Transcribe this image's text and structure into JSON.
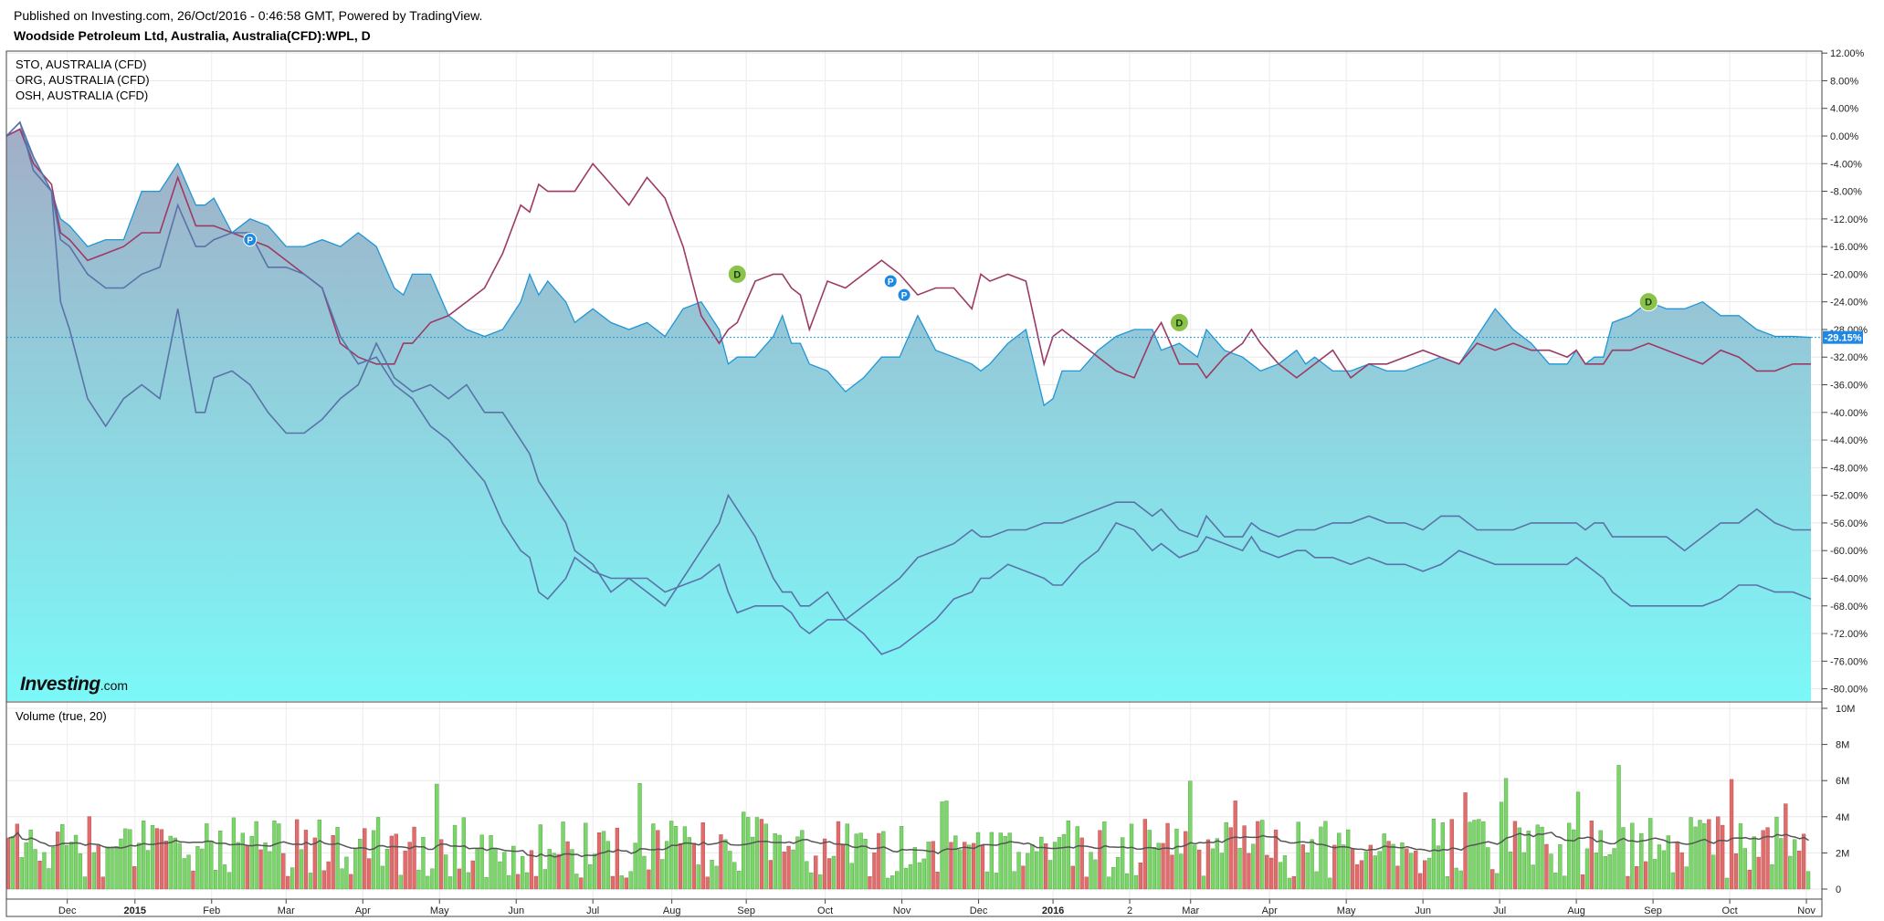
{
  "header": {
    "published": "Published on Investing.com, 26/Oct/2016 - 0:46:58 GMT, Powered by TradingView.",
    "symbol": "Woodside Petroleum Ltd, Australia, Australia(CFD):WPL, D"
  },
  "legend": [
    "STO, AUSTRALIA (CFD)",
    "ORG, AUSTRALIA (CFD)",
    "OSH, AUSTRALIA (CFD)"
  ],
  "volume_label": "Volume (true, 20)",
  "brand": {
    "bold": "Investing",
    "suffix": ".com"
  },
  "colors": {
    "wpl_line": "#2196d6",
    "sto_line": "#9c3a66",
    "compare_line": "#5a72a8",
    "area_top": "#a2aec6",
    "area_bottom": "#7cf8f8",
    "vol_up": "#7bd66a",
    "vol_down": "#e06c6c",
    "vol_ma": "#555555",
    "last_price_badge": "#1e88e5"
  },
  "chart_data": [
    {
      "type": "area",
      "title": "Woodside Petroleum Ltd, Australia, Australia(CFD):WPL, D",
      "xlabels": [
        "Dec",
        "2015",
        "Feb",
        "Mar",
        "Apr",
        "May",
        "Jun",
        "Jul",
        "Aug",
        "Sep",
        "Oct",
        "Nov",
        "Dec",
        "2016",
        "2",
        "Mar",
        "Apr",
        "May",
        "Jun",
        "Jul",
        "Aug",
        "Sep",
        "Oct",
        "Nov"
      ],
      "y_ticks": [
        "12.00%",
        "8.00%",
        "4.00%",
        "0.00%",
        "-4.00%",
        "-8.00%",
        "-12.00%",
        "-16.00%",
        "-20.00%",
        "-24.00%",
        "-28.00%",
        "-32.00%",
        "-36.00%",
        "-40.00%",
        "-44.00%",
        "-48.00%",
        "-52.00%",
        "-56.00%",
        "-60.00%",
        "-64.00%",
        "-68.00%",
        "-72.00%",
        "-76.00%",
        "-80.00%"
      ],
      "ylim": [
        -82,
        12
      ],
      "last_value_label": "-29.15%",
      "series": [
        {
          "name": "WPL",
          "style": "area",
          "x": [
            0,
            3,
            6,
            10,
            12,
            14,
            18,
            22,
            26,
            30,
            34,
            38,
            42,
            44,
            46,
            50,
            54,
            58,
            62,
            66,
            70,
            74,
            78,
            82,
            86,
            88,
            90,
            94,
            98,
            102,
            106,
            110,
            114,
            116,
            118,
            120,
            124,
            126,
            130,
            134,
            138,
            142,
            146,
            150,
            154,
            158,
            160,
            162,
            166,
            170,
            172,
            174,
            176,
            178,
            182,
            186,
            190,
            194,
            198,
            202,
            206,
            210,
            214,
            216,
            218,
            222,
            226,
            230,
            232,
            234,
            238,
            242,
            246,
            250,
            254,
            256,
            260,
            264,
            266,
            270,
            274,
            276,
            278,
            282,
            286,
            288,
            290,
            294,
            298,
            302,
            306,
            310,
            314,
            318,
            322,
            326,
            330,
            334,
            338,
            342,
            346,
            348,
            350,
            352,
            354,
            356,
            360,
            364,
            368,
            372,
            376,
            380,
            384,
            388,
            392,
            396,
            400
          ],
          "values": [
            0,
            1,
            -3,
            -8,
            -12,
            -13,
            -16,
            -15,
            -15,
            -8,
            -8,
            -4,
            -10,
            -10,
            -9,
            -14,
            -12,
            -13,
            -16,
            -16,
            -15,
            -16,
            -14,
            -16,
            -22,
            -23,
            -20,
            -20,
            -26,
            -28,
            -29,
            -28,
            -24,
            -20,
            -23,
            -21,
            -24,
            -27,
            -25,
            -27,
            -28,
            -27,
            -29,
            -25,
            -24,
            -28,
            -33,
            -32,
            -32,
            -29,
            -26,
            -30,
            -30,
            -33,
            -34,
            -37,
            -35,
            -32,
            -32,
            -26,
            -31,
            -32,
            -33,
            -34,
            -33,
            -30,
            -28,
            -39,
            -38,
            -34,
            -34,
            -31,
            -29,
            -28,
            -28,
            -31,
            -30,
            -32,
            -28,
            -31,
            -32,
            -33,
            -34,
            -33,
            -31,
            -33,
            -32,
            -34,
            -34,
            -33,
            -34,
            -34,
            -33,
            -32,
            -33,
            -29,
            -25,
            -28,
            -30,
            -33,
            -33,
            -31,
            -33,
            -32,
            -32,
            -27,
            -26,
            -24,
            -25,
            -25,
            -24,
            -26,
            -26,
            -28,
            -29,
            -29,
            -29.15
          ]
        },
        {
          "name": "STO",
          "style": "line",
          "x": [
            0,
            3,
            6,
            10,
            12,
            14,
            18,
            22,
            26,
            30,
            34,
            38,
            42,
            44,
            46,
            50,
            54,
            58,
            62,
            66,
            70,
            74,
            78,
            82,
            86,
            88,
            90,
            94,
            98,
            102,
            106,
            110,
            114,
            116,
            118,
            120,
            124,
            126,
            130,
            134,
            138,
            142,
            146,
            150,
            154,
            158,
            160,
            162,
            166,
            170,
            172,
            174,
            176,
            178,
            182,
            186,
            190,
            194,
            198,
            202,
            206,
            210,
            214,
            216,
            218,
            222,
            226,
            230,
            232,
            234,
            238,
            242,
            246,
            250,
            254,
            256,
            260,
            264,
            266,
            270,
            274,
            276,
            278,
            282,
            286,
            288,
            290,
            294,
            298,
            302,
            306,
            310,
            314,
            318,
            322,
            326,
            330,
            334,
            338,
            342,
            346,
            348,
            350,
            352,
            354,
            356,
            360,
            364,
            368,
            372,
            376,
            380,
            384,
            388,
            392,
            396,
            400
          ],
          "values": [
            0,
            1,
            -4,
            -7,
            -14,
            -15,
            -18,
            -17,
            -16,
            -14,
            -14,
            -6,
            -13,
            -13,
            -13,
            -14,
            -15,
            -16,
            -18,
            -20,
            -22,
            -30,
            -32,
            -33,
            -33,
            -30,
            -30,
            -27,
            -26,
            -24,
            -22,
            -17,
            -10,
            -11,
            -7,
            -8,
            -8,
            -8,
            -4,
            -7,
            -10,
            -6,
            -9,
            -16,
            -26,
            -30,
            -28,
            -27,
            -21,
            -20,
            -20,
            -22,
            -23,
            -28,
            -21,
            -22,
            -20,
            -18,
            -20,
            -23,
            -22,
            -22,
            -25,
            -20,
            -21,
            -20,
            -21,
            -33,
            -29,
            -28,
            -30,
            -32,
            -34,
            -35,
            -29,
            -27,
            -33,
            -33,
            -35,
            -32,
            -30,
            -28,
            -30,
            -33,
            -35,
            -34,
            -33,
            -31,
            -35,
            -33,
            -33,
            -32,
            -31,
            -32,
            -33,
            -30,
            -31,
            -30,
            -31,
            -31,
            -32,
            -31,
            -33,
            -33,
            -33,
            -31,
            -31,
            -30,
            -31,
            -32,
            -33,
            -31,
            -32,
            -34,
            -34,
            -33,
            -33
          ]
        },
        {
          "name": "ORG",
          "style": "line",
          "x": [
            0,
            3,
            6,
            10,
            12,
            14,
            18,
            22,
            26,
            30,
            34,
            38,
            42,
            44,
            46,
            50,
            54,
            58,
            62,
            66,
            70,
            74,
            78,
            82,
            86,
            88,
            90,
            94,
            98,
            102,
            106,
            110,
            114,
            116,
            118,
            120,
            124,
            126,
            130,
            134,
            138,
            142,
            146,
            150,
            154,
            158,
            160,
            162,
            166,
            170,
            172,
            174,
            176,
            178,
            182,
            186,
            190,
            194,
            198,
            202,
            206,
            210,
            214,
            216,
            218,
            222,
            226,
            230,
            232,
            234,
            238,
            242,
            246,
            250,
            254,
            256,
            260,
            264,
            266,
            270,
            274,
            276,
            278,
            282,
            286,
            288,
            290,
            294,
            298,
            302,
            306,
            310,
            314,
            318,
            322,
            326,
            330,
            334,
            338,
            342,
            346,
            348,
            350,
            352,
            354,
            356,
            360,
            364,
            368,
            372,
            376,
            380,
            384,
            388,
            392,
            396,
            400
          ],
          "values": [
            0,
            2,
            -3,
            -8,
            -15,
            -16,
            -20,
            -22,
            -22,
            -20,
            -19,
            -10,
            -16,
            -16,
            -15,
            -14,
            -14,
            -19,
            -19,
            -20,
            -22,
            -29,
            -33,
            -32,
            -36,
            -37,
            -38,
            -42,
            -44,
            -47,
            -50,
            -56,
            -60,
            -61,
            -66,
            -67,
            -64,
            -61,
            -63,
            -64,
            -64,
            -64,
            -66,
            -65,
            -64,
            -62,
            -66,
            -69,
            -68,
            -68,
            -68,
            -69,
            -71,
            -72,
            -70,
            -70,
            -68,
            -66,
            -64,
            -61,
            -60,
            -59,
            -57,
            -58,
            -58,
            -57,
            -57,
            -56,
            -56,
            -56,
            -55,
            -54,
            -53,
            -53,
            -55,
            -54,
            -57,
            -58,
            -55,
            -58,
            -58,
            -56,
            -57,
            -58,
            -57,
            -57,
            -57,
            -56,
            -56,
            -55,
            -56,
            -56,
            -57,
            -55,
            -55,
            -57,
            -57,
            -57,
            -56,
            -56,
            -56,
            -56,
            -57,
            -56,
            -56,
            -58,
            -58,
            -58,
            -58,
            -60,
            -58,
            -56,
            -56,
            -54,
            -56,
            -57,
            -57
          ]
        },
        {
          "name": "OSH",
          "style": "line",
          "x": [
            0,
            3,
            6,
            10,
            12,
            14,
            18,
            22,
            26,
            30,
            34,
            38,
            42,
            44,
            46,
            50,
            54,
            58,
            62,
            66,
            70,
            74,
            78,
            82,
            86,
            88,
            90,
            94,
            98,
            102,
            106,
            110,
            114,
            116,
            118,
            120,
            124,
            126,
            130,
            134,
            138,
            142,
            146,
            150,
            154,
            158,
            160,
            162,
            166,
            170,
            172,
            174,
            176,
            178,
            182,
            186,
            190,
            194,
            198,
            202,
            206,
            210,
            214,
            216,
            218,
            222,
            226,
            230,
            232,
            234,
            238,
            242,
            246,
            250,
            254,
            256,
            260,
            264,
            266,
            270,
            274,
            276,
            278,
            282,
            286,
            288,
            290,
            294,
            298,
            302,
            306,
            310,
            314,
            318,
            322,
            326,
            330,
            334,
            338,
            342,
            346,
            348,
            350,
            352,
            354,
            356,
            360,
            364,
            368,
            372,
            376,
            380,
            384,
            388,
            392,
            396,
            400
          ],
          "values": [
            0,
            2,
            -5,
            -8,
            -24,
            -28,
            -38,
            -42,
            -38,
            -36,
            -38,
            -25,
            -40,
            -40,
            -35,
            -34,
            -36,
            -40,
            -43,
            -43,
            -41,
            -38,
            -36,
            -30,
            -35,
            -36,
            -37,
            -36,
            -38,
            -36,
            -40,
            -40,
            -44,
            -46,
            -50,
            -52,
            -56,
            -60,
            -62,
            -66,
            -64,
            -66,
            -68,
            -64,
            -60,
            -56,
            -52,
            -54,
            -58,
            -64,
            -66,
            -66,
            -68,
            -68,
            -66,
            -70,
            -72,
            -75,
            -74,
            -72,
            -70,
            -67,
            -66,
            -64,
            -64,
            -62,
            -63,
            -64,
            -65,
            -65,
            -62,
            -60,
            -56,
            -57,
            -60,
            -59,
            -61,
            -60,
            -58,
            -59,
            -60,
            -58,
            -60,
            -61,
            -60,
            -60,
            -61,
            -61,
            -62,
            -61,
            -62,
            -62,
            -63,
            -62,
            -60,
            -61,
            -62,
            -62,
            -62,
            -62,
            -62,
            -61,
            -62,
            -63,
            -64,
            -66,
            -68,
            -68,
            -68,
            -68,
            -68,
            -67,
            -65,
            -65,
            -66,
            -66,
            -67
          ]
        }
      ],
      "event_markers": [
        {
          "label": "P",
          "x": 54,
          "y": -15
        },
        {
          "label": "D",
          "x": 162,
          "y": -20
        },
        {
          "label": "P",
          "x": 196,
          "y": -21
        },
        {
          "label": "P",
          "x": 199,
          "y": -23
        },
        {
          "label": "D",
          "x": 260,
          "y": -27
        },
        {
          "label": "D",
          "x": 364,
          "y": -24
        }
      ]
    },
    {
      "type": "bar",
      "title": "Volume (true, 20)",
      "y_ticks": [
        "10M",
        "8M",
        "6M",
        "4M",
        "2M",
        "0"
      ],
      "ylim": [
        0,
        10
      ],
      "unit": "M",
      "bars": 400,
      "ma_period": 20
    }
  ]
}
